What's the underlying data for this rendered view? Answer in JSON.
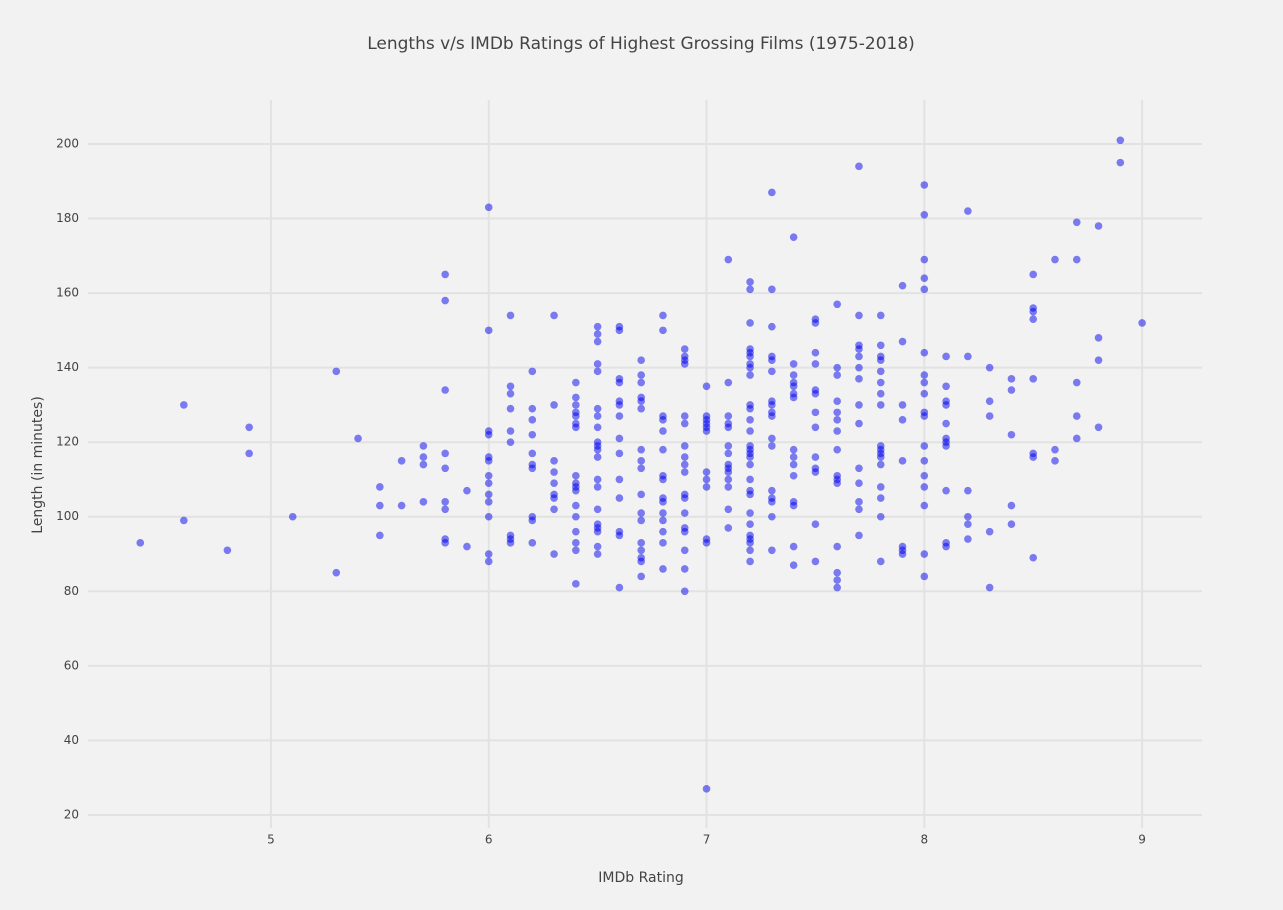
{
  "chart_data": {
    "type": "scatter",
    "title": "Lengths v/s IMDb Ratings of Highest Grossing Films (1975-2018)",
    "x_label": "IMDb Rating",
    "y_label": "Length (in minutes)",
    "color": "#0000ee",
    "xlim": [
      4.16,
      9.275
    ],
    "ylim": [
      16.5,
      211.8
    ],
    "xticks": [
      5,
      6,
      7,
      8,
      9
    ],
    "yticks": [
      20,
      40,
      60,
      80,
      100,
      120,
      140,
      160,
      180,
      200
    ],
    "grid": true,
    "x": [
      4.4,
      4.6,
      4.6,
      4.8,
      4.9,
      4.9,
      5.1,
      5.3,
      5.3,
      5.4,
      5.5,
      5.5,
      5.5,
      5.6,
      5.6,
      5.7,
      5.7,
      5.7,
      5.7,
      5.8,
      5.8,
      5.8,
      5.8,
      5.8,
      5.8,
      5.8,
      5.8,
      5.8,
      5.9,
      5.9,
      6.0,
      6.0,
      6.0,
      6.0,
      6.0,
      6.0,
      6.0,
      6.0,
      6.0,
      6.0,
      6.0,
      6.0,
      6.0,
      6.1,
      6.1,
      6.1,
      6.1,
      6.1,
      6.1,
      6.1,
      6.1,
      6.1,
      6.2,
      6.2,
      6.2,
      6.2,
      6.2,
      6.2,
      6.2,
      6.2,
      6.2,
      6.2,
      6.3,
      6.3,
      6.3,
      6.3,
      6.3,
      6.3,
      6.3,
      6.3,
      6.3,
      6.4,
      6.4,
      6.4,
      6.4,
      6.4,
      6.4,
      6.4,
      6.4,
      6.4,
      6.4,
      6.4,
      6.4,
      6.4,
      6.4,
      6.4,
      6.4,
      6.4,
      6.5,
      6.5,
      6.5,
      6.5,
      6.5,
      6.5,
      6.5,
      6.5,
      6.5,
      6.5,
      6.5,
      6.5,
      6.5,
      6.5,
      6.5,
      6.5,
      6.5,
      6.5,
      6.5,
      6.5,
      6.6,
      6.6,
      6.6,
      6.6,
      6.6,
      6.6,
      6.6,
      6.6,
      6.6,
      6.6,
      6.6,
      6.6,
      6.6,
      6.6,
      6.7,
      6.7,
      6.7,
      6.7,
      6.7,
      6.7,
      6.7,
      6.7,
      6.7,
      6.7,
      6.7,
      6.7,
      6.7,
      6.7,
      6.7,
      6.7,
      6.7,
      6.8,
      6.8,
      6.8,
      6.8,
      6.8,
      6.8,
      6.8,
      6.8,
      6.8,
      6.8,
      6.8,
      6.8,
      6.8,
      6.8,
      6.8,
      6.9,
      6.9,
      6.9,
      6.9,
      6.9,
      6.9,
      6.9,
      6.9,
      6.9,
      6.9,
      6.9,
      6.9,
      6.9,
      6.9,
      6.9,
      6.9,
      6.9,
      6.9,
      7.0,
      7.0,
      7.0,
      7.0,
      7.0,
      7.0,
      7.0,
      7.0,
      7.0,
      7.0,
      7.0,
      7.0,
      7.1,
      7.1,
      7.1,
      7.1,
      7.1,
      7.1,
      7.1,
      7.1,
      7.1,
      7.1,
      7.1,
      7.1,
      7.1,
      7.1,
      7.2,
      7.2,
      7.2,
      7.2,
      7.2,
      7.2,
      7.2,
      7.2,
      7.2,
      7.2,
      7.2,
      7.2,
      7.2,
      7.2,
      7.2,
      7.2,
      7.2,
      7.2,
      7.2,
      7.2,
      7.2,
      7.2,
      7.2,
      7.2,
      7.2,
      7.2,
      7.2,
      7.2,
      7.3,
      7.3,
      7.3,
      7.3,
      7.3,
      7.3,
      7.3,
      7.3,
      7.3,
      7.3,
      7.3,
      7.3,
      7.3,
      7.3,
      7.3,
      7.3,
      7.3,
      7.4,
      7.4,
      7.4,
      7.4,
      7.4,
      7.4,
      7.4,
      7.4,
      7.4,
      7.4,
      7.4,
      7.4,
      7.4,
      7.4,
      7.4,
      7.5,
      7.5,
      7.5,
      7.5,
      7.5,
      7.5,
      7.5,
      7.5,
      7.5,
      7.5,
      7.5,
      7.5,
      7.5,
      7.6,
      7.6,
      7.6,
      7.6,
      7.6,
      7.6,
      7.6,
      7.6,
      7.6,
      7.6,
      7.6,
      7.6,
      7.6,
      7.6,
      7.6,
      7.7,
      7.7,
      7.7,
      7.7,
      7.7,
      7.7,
      7.7,
      7.7,
      7.7,
      7.7,
      7.7,
      7.7,
      7.7,
      7.7,
      7.8,
      7.8,
      7.8,
      7.8,
      7.8,
      7.8,
      7.8,
      7.8,
      7.8,
      7.8,
      7.8,
      7.8,
      7.8,
      7.8,
      7.8,
      7.8,
      7.8,
      7.9,
      7.9,
      7.9,
      7.9,
      7.9,
      7.9,
      7.9,
      7.9,
      8.0,
      8.0,
      8.0,
      8.0,
      8.0,
      8.0,
      8.0,
      8.0,
      8.0,
      8.0,
      8.0,
      8.0,
      8.0,
      8.0,
      8.0,
      8.0,
      8.0,
      8.0,
      8.1,
      8.1,
      8.1,
      8.1,
      8.1,
      8.1,
      8.1,
      8.1,
      8.1,
      8.1,
      8.1,
      8.2,
      8.2,
      8.2,
      8.2,
      8.2,
      8.2,
      8.3,
      8.3,
      8.3,
      8.3,
      8.3,
      8.4,
      8.4,
      8.4,
      8.4,
      8.4,
      8.5,
      8.5,
      8.5,
      8.5,
      8.5,
      8.5,
      8.5,
      8.5,
      8.6,
      8.6,
      8.6,
      8.7,
      8.7,
      8.7,
      8.7,
      8.7,
      8.8,
      8.8,
      8.8,
      8.8,
      8.9,
      8.9,
      9.0
    ],
    "values": [
      93,
      130,
      99,
      91,
      124,
      117,
      100,
      139,
      85,
      121,
      108,
      103,
      95,
      115,
      103,
      119,
      116,
      114,
      104,
      165,
      158,
      134,
      117,
      113,
      104,
      102,
      94,
      93,
      107,
      92,
      183,
      150,
      123,
      122,
      116,
      115,
      111,
      109,
      106,
      104,
      100,
      90,
      88,
      154,
      135,
      133,
      129,
      123,
      120,
      95,
      94,
      93,
      139,
      129,
      126,
      122,
      117,
      114,
      113,
      100,
      99,
      93,
      154,
      130,
      115,
      112,
      109,
      106,
      105,
      102,
      90,
      136,
      132,
      130,
      128,
      127,
      125,
      124,
      111,
      109,
      108,
      107,
      103,
      100,
      96,
      93,
      91,
      82,
      151,
      149,
      147,
      141,
      139,
      129,
      127,
      124,
      120,
      119,
      118,
      116,
      110,
      108,
      102,
      98,
      97,
      96,
      92,
      90,
      151,
      150,
      137,
      136,
      131,
      130,
      127,
      121,
      117,
      110,
      105,
      96,
      95,
      81,
      142,
      138,
      136,
      132,
      131,
      129,
      118,
      115,
      113,
      106,
      101,
      99,
      93,
      91,
      89,
      88,
      84,
      154,
      150,
      127,
      126,
      123,
      118,
      111,
      110,
      105,
      104,
      101,
      99,
      96,
      93,
      86,
      145,
      143,
      142,
      141,
      127,
      125,
      119,
      116,
      114,
      112,
      106,
      105,
      101,
      97,
      96,
      91,
      86,
      80,
      135,
      127,
      126,
      125,
      124,
      123,
      112,
      110,
      108,
      94,
      93,
      27,
      169,
      136,
      127,
      125,
      124,
      119,
      117,
      114,
      113,
      112,
      110,
      108,
      102,
      97,
      163,
      161,
      152,
      145,
      144,
      143,
      141,
      140,
      138,
      130,
      129,
      126,
      123,
      119,
      118,
      117,
      116,
      114,
      110,
      107,
      106,
      101,
      98,
      95,
      94,
      93,
      91,
      88,
      187,
      161,
      151,
      143,
      142,
      139,
      131,
      130,
      128,
      127,
      121,
      119,
      107,
      105,
      104,
      100,
      91,
      175,
      141,
      138,
      136,
      135,
      133,
      132,
      118,
      116,
      114,
      111,
      104,
      103,
      92,
      87,
      153,
      152,
      144,
      141,
      134,
      133,
      128,
      124,
      116,
      113,
      112,
      98,
      88,
      157,
      140,
      138,
      131,
      128,
      126,
      123,
      118,
      111,
      110,
      109,
      92,
      85,
      83,
      81,
      194,
      154,
      146,
      145,
      143,
      140,
      137,
      130,
      125,
      113,
      109,
      104,
      102,
      95,
      154,
      146,
      143,
      142,
      139,
      136,
      133,
      130,
      119,
      118,
      117,
      116,
      114,
      108,
      105,
      100,
      88,
      162,
      147,
      130,
      126,
      115,
      92,
      91,
      90,
      189,
      181,
      169,
      164,
      161,
      144,
      138,
      136,
      133,
      128,
      127,
      119,
      115,
      111,
      108,
      103,
      90,
      84,
      143,
      135,
      131,
      130,
      125,
      121,
      120,
      119,
      107,
      93,
      92,
      182,
      143,
      107,
      100,
      98,
      94,
      140,
      131,
      127,
      96,
      81,
      137,
      134,
      122,
      103,
      98,
      165,
      156,
      155,
      153,
      137,
      117,
      116,
      89,
      169,
      118,
      115,
      179,
      169,
      136,
      127,
      121,
      178,
      148,
      142,
      124,
      201,
      195,
      152
    ]
  }
}
